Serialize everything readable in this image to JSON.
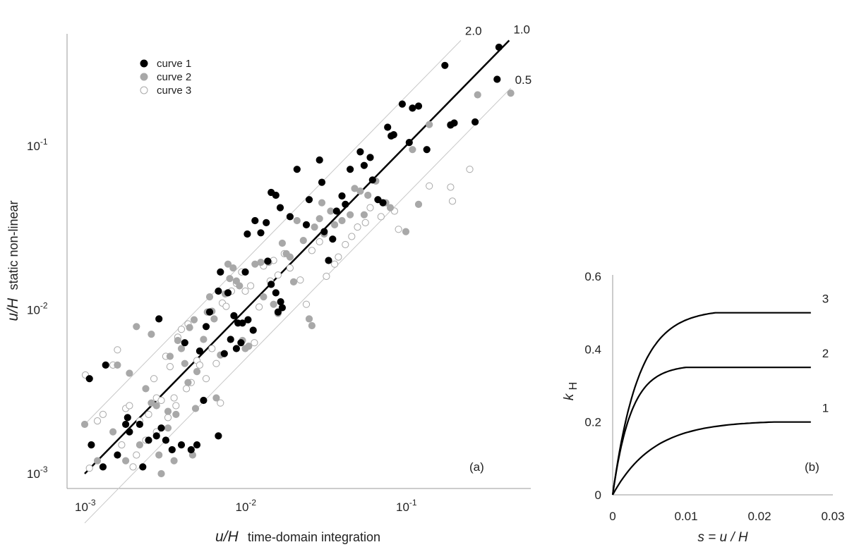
{
  "chart_data": [
    {
      "panel": "(a)",
      "type": "scatter",
      "xlabel": {
        "math": "u/H",
        "text": "time-domain integration"
      },
      "ylabel": {
        "math": "u/H",
        "text": "static non-linear"
      },
      "x_scale": "log",
      "y_scale": "log",
      "xlim": [
        0.0008,
        0.5
      ],
      "ylim": [
        0.0008,
        0.5
      ],
      "x_ticks": [
        {
          "value": 0.001,
          "base": "10",
          "exp": "-3"
        },
        {
          "value": 0.01,
          "base": "10",
          "exp": "-2"
        },
        {
          "value": 0.1,
          "base": "10",
          "exp": "-1"
        }
      ],
      "y_ticks": [
        {
          "value": 0.001,
          "base": "10",
          "exp": "-3"
        },
        {
          "value": 0.01,
          "base": "10",
          "exp": "-2"
        },
        {
          "value": 0.1,
          "base": "10",
          "exp": "-1"
        }
      ],
      "grid": false,
      "legend_position": "top-left",
      "reference_lines": [
        {
          "ratio": 2.0,
          "label": "2.0",
          "x_range": [
            0.001,
            0.22
          ],
          "color": "#c8c8c8"
        },
        {
          "ratio": 1.0,
          "label": "1.0",
          "x_range": [
            0.001,
            0.44
          ],
          "color": "#000000"
        },
        {
          "ratio": 0.5,
          "label": "0.5",
          "x_range": [
            0.001,
            0.45
          ],
          "color": "#c8c8c8"
        }
      ],
      "series": [
        {
          "name": "curve 1",
          "fill": "#000000",
          "stroke": "#000000",
          "points": [
            [
              0.00107,
              0.0038
            ],
            [
              0.00135,
              0.0046
            ],
            [
              0.00185,
              0.0022
            ],
            [
              0.0019,
              0.0018
            ],
            [
              0.0018,
              0.002
            ],
            [
              0.0022,
              0.002
            ],
            [
              0.0025,
              0.0016
            ],
            [
              0.0028,
              0.0017
            ],
            [
              0.003,
              0.0019
            ],
            [
              0.0032,
              0.0016
            ],
            [
              0.0035,
              0.0014
            ],
            [
              0.004,
              0.0015
            ],
            [
              0.0046,
              0.0014
            ],
            [
              0.005,
              0.0015
            ],
            [
              0.0023,
              0.0011
            ],
            [
              0.0013,
              0.0011
            ],
            [
              0.0016,
              0.0013
            ],
            [
              0.0011,
              0.0015
            ],
            [
              0.0029,
              0.0088
            ],
            [
              0.0042,
              0.0063
            ],
            [
              0.0055,
              0.0028
            ],
            [
              0.0068,
              0.0017
            ],
            [
              0.006,
              0.0097
            ],
            [
              0.007,
              0.017
            ],
            [
              0.0078,
              0.0127
            ],
            [
              0.0085,
              0.0092
            ],
            [
              0.009,
              0.0083
            ],
            [
              0.0096,
              0.0083
            ],
            [
              0.0094,
              0.0063
            ],
            [
              0.0088,
              0.0058
            ],
            [
              0.0074,
              0.0054
            ],
            [
              0.0081,
              0.0066
            ],
            [
              0.01,
              0.017
            ],
            [
              0.0103,
              0.029
            ],
            [
              0.0115,
              0.035
            ],
            [
              0.0125,
              0.0295
            ],
            [
              0.0138,
              0.0198
            ],
            [
              0.0145,
              0.0143
            ],
            [
              0.0155,
              0.0127
            ],
            [
              0.016,
              0.0097
            ],
            [
              0.0166,
              0.0112
            ],
            [
              0.017,
              0.0103
            ],
            [
              0.019,
              0.037
            ],
            [
              0.021,
              0.072
            ],
            [
              0.024,
              0.033
            ],
            [
              0.025,
              0.047
            ],
            [
              0.029,
              0.082
            ],
            [
              0.03,
              0.06
            ],
            [
              0.031,
              0.03
            ],
            [
              0.033,
              0.02
            ],
            [
              0.035,
              0.027
            ],
            [
              0.037,
              0.04
            ],
            [
              0.04,
              0.0495
            ],
            [
              0.042,
              0.044
            ],
            [
              0.045,
              0.072
            ],
            [
              0.052,
              0.092
            ],
            [
              0.055,
              0.076
            ],
            [
              0.06,
              0.085
            ],
            [
              0.062,
              0.062
            ],
            [
              0.067,
              0.047
            ],
            [
              0.072,
              0.045
            ],
            [
              0.077,
              0.13
            ],
            [
              0.081,
              0.115
            ],
            [
              0.084,
              0.117
            ],
            [
              0.095,
              0.18
            ],
            [
              0.105,
              0.105
            ],
            [
              0.11,
              0.17
            ],
            [
              0.12,
              0.175
            ],
            [
              0.135,
              0.095
            ],
            [
              0.175,
              0.31
            ],
            [
              0.19,
              0.134
            ],
            [
              0.2,
              0.138
            ],
            [
              0.27,
              0.14
            ],
            [
              0.38,
              0.4
            ],
            [
              0.37,
              0.255
            ],
            [
              0.0104,
              0.0087
            ],
            [
              0.0112,
              0.0075
            ],
            [
              0.0165,
              0.042
            ],
            [
              0.0145,
              0.052
            ],
            [
              0.0155,
              0.05
            ],
            [
              0.0135,
              0.034
            ],
            [
              0.0068,
              0.013
            ],
            [
              0.0057,
              0.0079
            ],
            [
              0.0052,
              0.0056
            ]
          ]
        },
        {
          "name": "curve 2",
          "fill": "#a8a8a8",
          "stroke": "#a8a8a8",
          "points": [
            [
              0.001,
              0.002
            ],
            [
              0.0012,
              0.0012
            ],
            [
              0.0016,
              0.0046
            ],
            [
              0.0019,
              0.0041
            ],
            [
              0.0021,
              0.0079
            ],
            [
              0.0024,
              0.0033
            ],
            [
              0.0026,
              0.0071
            ],
            [
              0.0028,
              0.0026
            ],
            [
              0.0029,
              0.0013
            ],
            [
              0.003,
              0.001
            ],
            [
              0.0033,
              0.0019
            ],
            [
              0.0037,
              0.0023
            ],
            [
              0.004,
              0.0058
            ],
            [
              0.0042,
              0.0047
            ],
            [
              0.0044,
              0.0036
            ],
            [
              0.0045,
              0.0078
            ],
            [
              0.0048,
              0.0087
            ],
            [
              0.005,
              0.0042
            ],
            [
              0.0055,
              0.0066
            ],
            [
              0.0058,
              0.0097
            ],
            [
              0.006,
              0.012
            ],
            [
              0.0062,
              0.0098
            ],
            [
              0.0064,
              0.0088
            ],
            [
              0.0066,
              0.0029
            ],
            [
              0.007,
              0.0053
            ],
            [
              0.0075,
              0.0125
            ],
            [
              0.0078,
              0.019
            ],
            [
              0.008,
              0.0155
            ],
            [
              0.0084,
              0.018
            ],
            [
              0.0088,
              0.015
            ],
            [
              0.0092,
              0.014
            ],
            [
              0.0096,
              0.0065
            ],
            [
              0.01,
              0.0058
            ],
            [
              0.0105,
              0.006
            ],
            [
              0.0115,
              0.019
            ],
            [
              0.0125,
              0.0195
            ],
            [
              0.013,
              0.012
            ],
            [
              0.014,
              0.0195
            ],
            [
              0.015,
              0.0108
            ],
            [
              0.016,
              0.0095
            ],
            [
              0.017,
              0.0255
            ],
            [
              0.018,
              0.022
            ],
            [
              0.019,
              0.021
            ],
            [
              0.02,
              0.0148
            ],
            [
              0.021,
              0.035
            ],
            [
              0.023,
              0.0265
            ],
            [
              0.025,
              0.0088
            ],
            [
              0.026,
              0.008
            ],
            [
              0.027,
              0.032
            ],
            [
              0.029,
              0.036
            ],
            [
              0.03,
              0.045
            ],
            [
              0.031,
              0.029
            ],
            [
              0.034,
              0.04
            ],
            [
              0.036,
              0.033
            ],
            [
              0.04,
              0.035
            ],
            [
              0.045,
              0.038
            ],
            [
              0.048,
              0.055
            ],
            [
              0.052,
              0.053
            ],
            [
              0.055,
              0.038
            ],
            [
              0.058,
              0.05
            ],
            [
              0.065,
              0.061
            ],
            [
              0.075,
              0.045
            ],
            [
              0.08,
              0.042
            ],
            [
              0.1,
              0.03
            ],
            [
              0.11,
              0.095
            ],
            [
              0.12,
              0.044
            ],
            [
              0.14,
              0.135
            ],
            [
              0.19,
              0.135
            ],
            [
              0.28,
              0.205
            ],
            [
              0.45,
              0.21
            ],
            [
              0.0036,
              0.0012
            ],
            [
              0.0047,
              0.0013
            ],
            [
              0.0022,
              0.0015
            ],
            [
              0.0018,
              0.0012
            ],
            [
              0.0015,
              0.0018
            ],
            [
              0.0026,
              0.0027
            ],
            [
              0.0034,
              0.0052
            ],
            [
              0.0038,
              0.0065
            ],
            [
              0.0049,
              0.0025
            ],
            [
              0.0033,
              0.0024
            ]
          ]
        },
        {
          "name": "curve 3",
          "fill": "#ffffff",
          "stroke": "#a8a8a8",
          "points": [
            [
              0.00101,
              0.004
            ],
            [
              0.00107,
              0.00108
            ],
            [
              0.0013,
              0.0023
            ],
            [
              0.0015,
              0.0046
            ],
            [
              0.0016,
              0.0057
            ],
            [
              0.0018,
              0.0025
            ],
            [
              0.002,
              0.0011
            ],
            [
              0.0022,
              0.0021
            ],
            [
              0.0025,
              0.0023
            ],
            [
              0.0027,
              0.0038
            ],
            [
              0.0028,
              0.0029
            ],
            [
              0.003,
              0.0028
            ],
            [
              0.0032,
              0.0052
            ],
            [
              0.0034,
              0.0045
            ],
            [
              0.0036,
              0.0029
            ],
            [
              0.0038,
              0.0068
            ],
            [
              0.004,
              0.0076
            ],
            [
              0.0044,
              0.0082
            ],
            [
              0.0046,
              0.0036
            ],
            [
              0.005,
              0.0049
            ],
            [
              0.0052,
              0.0046
            ],
            [
              0.0057,
              0.0038
            ],
            [
              0.0062,
              0.0058
            ],
            [
              0.0066,
              0.0047
            ],
            [
              0.007,
              0.0027
            ],
            [
              0.0072,
              0.011
            ],
            [
              0.0076,
              0.0105
            ],
            [
              0.0082,
              0.013
            ],
            [
              0.0088,
              0.0145
            ],
            [
              0.0095,
              0.017
            ],
            [
              0.01,
              0.013
            ],
            [
              0.0108,
              0.014
            ],
            [
              0.0114,
              0.0063
            ],
            [
              0.0122,
              0.0104
            ],
            [
              0.013,
              0.0185
            ],
            [
              0.0143,
              0.015
            ],
            [
              0.015,
              0.02
            ],
            [
              0.016,
              0.0163
            ],
            [
              0.0175,
              0.022
            ],
            [
              0.019,
              0.018
            ],
            [
              0.022,
              0.0152
            ],
            [
              0.024,
              0.0108
            ],
            [
              0.026,
              0.023
            ],
            [
              0.029,
              0.026
            ],
            [
              0.032,
              0.016
            ],
            [
              0.036,
              0.019
            ],
            [
              0.038,
              0.021
            ],
            [
              0.042,
              0.025
            ],
            [
              0.046,
              0.028
            ],
            [
              0.05,
              0.032
            ],
            [
              0.056,
              0.034
            ],
            [
              0.06,
              0.042
            ],
            [
              0.07,
              0.037
            ],
            [
              0.085,
              0.04
            ],
            [
              0.09,
              0.031
            ],
            [
              0.14,
              0.057
            ],
            [
              0.19,
              0.056
            ],
            [
              0.195,
              0.046
            ],
            [
              0.25,
              0.072
            ],
            [
              0.0021,
              0.0013
            ],
            [
              0.0024,
              0.0016
            ],
            [
              0.0028,
              0.0018
            ],
            [
              0.0033,
              0.0022
            ],
            [
              0.0037,
              0.0026
            ],
            [
              0.0043,
              0.0033
            ],
            [
              0.0017,
              0.0015
            ],
            [
              0.0019,
              0.0026
            ],
            [
              0.0012,
              0.0021
            ]
          ]
        }
      ],
      "annotation": "(a)"
    },
    {
      "panel": "(b)",
      "type": "line",
      "xlabel": "s = u / H",
      "ylabel": {
        "base": "k",
        "sub": "H"
      },
      "xlim": [
        0,
        0.03
      ],
      "ylim": [
        0,
        0.6
      ],
      "x_ticks": [
        "0",
        "0.01",
        "0.02",
        "0.03"
      ],
      "x_tick_values": [
        0,
        0.01,
        0.02,
        0.03
      ],
      "y_ticks": [
        "0",
        "0.2",
        "0.4",
        "0.6"
      ],
      "y_tick_values": [
        0,
        0.2,
        0.4,
        0.6
      ],
      "grid": false,
      "series": [
        {
          "name": "1",
          "kmax": 0.2,
          "s_sat": 0.022,
          "s_end": 0.027
        },
        {
          "name": "2",
          "kmax": 0.35,
          "s_sat": 0.01,
          "s_end": 0.027
        },
        {
          "name": "3",
          "kmax": 0.5,
          "s_sat": 0.014,
          "s_end": 0.027
        }
      ],
      "annotation": "(b)"
    }
  ]
}
